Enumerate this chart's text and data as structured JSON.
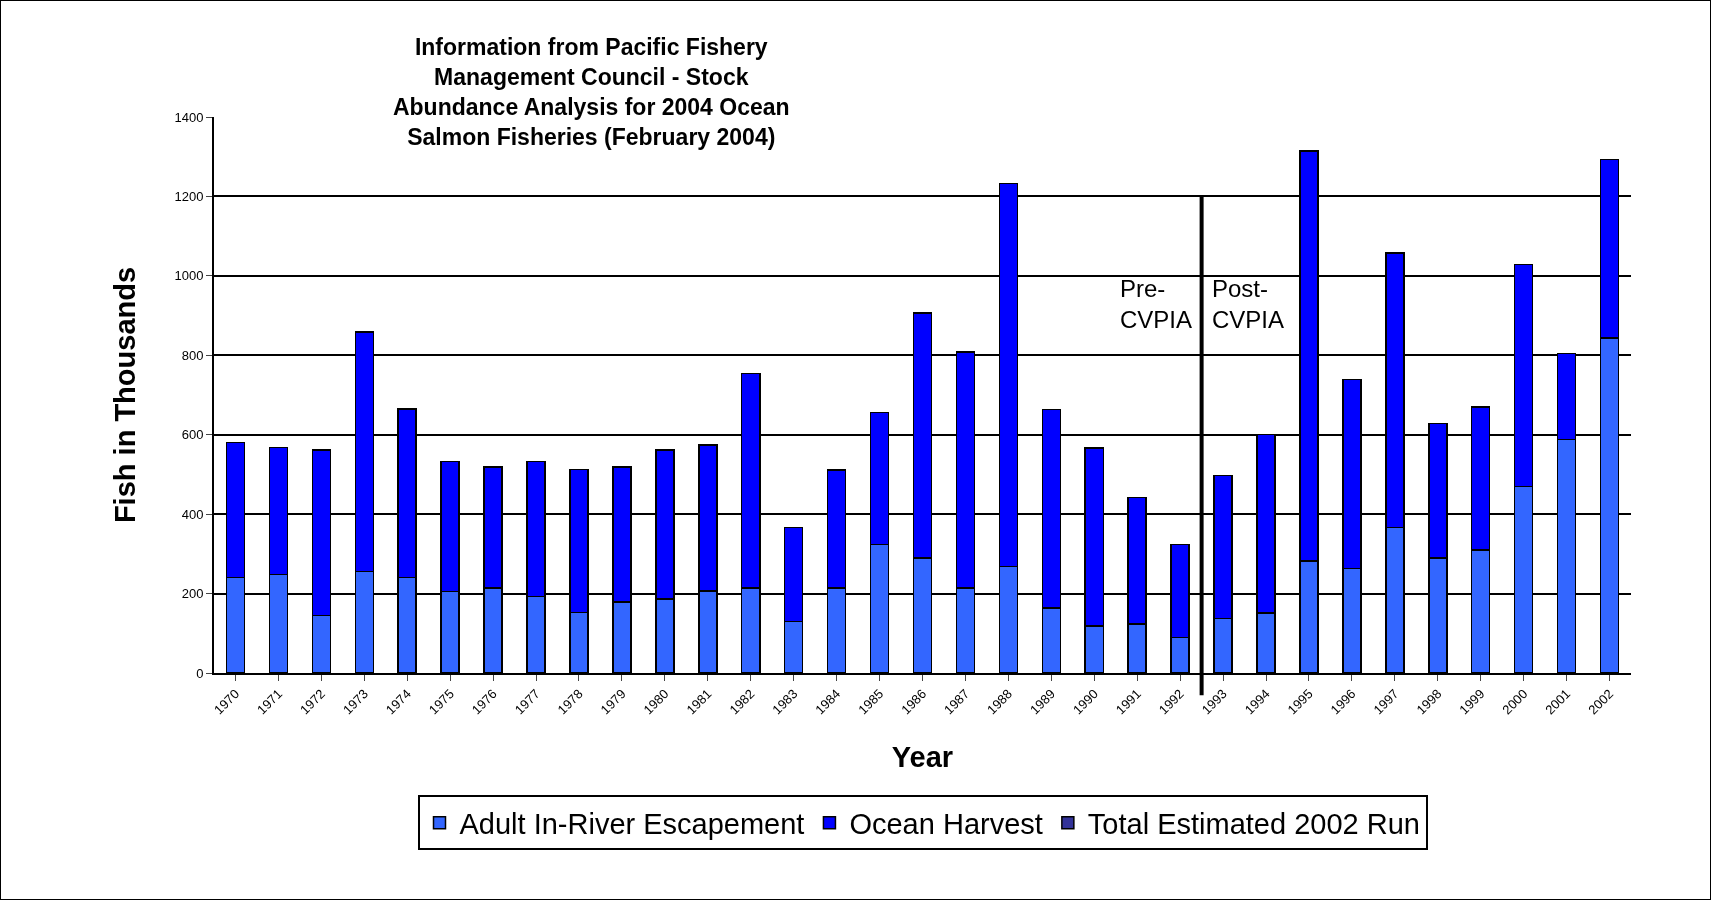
{
  "chart_data": {
    "type": "bar",
    "stacked": true,
    "title": "Information from Pacific Fishery\nManagement Council - Stock\nAbundance Analysis for 2004 Ocean\nSalmon Fisheries (February 2004)",
    "xlabel": "Year",
    "ylabel": "Fish in Thousands",
    "x": [
      1970,
      1971,
      1972,
      1973,
      1974,
      1975,
      1976,
      1977,
      1978,
      1979,
      1980,
      1981,
      1982,
      1983,
      1984,
      1985,
      1986,
      1987,
      1988,
      1989,
      1990,
      1991,
      1992,
      1993,
      1994,
      1995,
      1996,
      1997,
      1998,
      1999,
      2000,
      2001,
      2002
    ],
    "series": [
      {
        "name": "Adult In-River Escapement",
        "color": "#3366ff",
        "values": [
          241,
          248,
          145,
          255,
          241,
          205,
          214,
          193,
          152,
          179,
          186,
          207,
          214,
          130,
          214,
          323,
          289,
          214,
          268,
          164,
          118,
          124,
          89,
          137,
          151,
          282,
          263,
          366,
          289,
          310,
          469,
          588,
          843
        ]
      },
      {
        "name": "Ocean Harvest",
        "color": "#0000ff",
        "values": [
          340,
          320,
          416,
          604,
          424,
          328,
          305,
          340,
          360,
          340,
          375,
          367,
          540,
          236,
          297,
          333,
          617,
          594,
          964,
          500,
          449,
          318,
          235,
          360,
          449,
          1033,
          476,
          691,
          339,
          360,
          560,
          217,
          450
        ]
      },
      {
        "name": "Total Estimated 2002 Run",
        "color": "#333399",
        "values": [
          null,
          null,
          null,
          null,
          null,
          null,
          null,
          null,
          null,
          null,
          null,
          null,
          null,
          null,
          null,
          null,
          null,
          null,
          null,
          null,
          null,
          null,
          null,
          null,
          null,
          null,
          null,
          null,
          null,
          null,
          null,
          null,
          null
        ]
      }
    ],
    "xlim": [
      1969.5,
      2002.5
    ],
    "xticks": [
      {
        "value": 1970,
        "label": "1970"
      },
      {
        "value": 1971,
        "label": "1971"
      },
      {
        "value": 1972,
        "label": "1972"
      },
      {
        "value": 1973,
        "label": "1973"
      },
      {
        "value": 1974,
        "label": "1974"
      },
      {
        "value": 1975,
        "label": "1975"
      },
      {
        "value": 1976,
        "label": "1976"
      },
      {
        "value": 1977,
        "label": "1977"
      },
      {
        "value": 1978,
        "label": "1978"
      },
      {
        "value": 1979,
        "label": "1979"
      },
      {
        "value": 1980,
        "label": "1980"
      },
      {
        "value": 1981,
        "label": "1981"
      },
      {
        "value": 1982,
        "label": "1982"
      },
      {
        "value": 1983,
        "label": "1983"
      },
      {
        "value": 1984,
        "label": "1984"
      },
      {
        "value": 1985,
        "label": "1985"
      },
      {
        "value": 1986,
        "label": "1986"
      },
      {
        "value": 1987,
        "label": "1987"
      },
      {
        "value": 1988,
        "label": "1988"
      },
      {
        "value": 1989,
        "label": "1989"
      },
      {
        "value": 1990,
        "label": "1990"
      },
      {
        "value": 1991,
        "label": "1991"
      },
      {
        "value": 1992,
        "label": "1992"
      },
      {
        "value": 1993,
        "label": "1993"
      },
      {
        "value": 1994,
        "label": "1994"
      },
      {
        "value": 1995,
        "label": "1995"
      },
      {
        "value": 1996,
        "label": "1996"
      },
      {
        "value": 1997,
        "label": "1997"
      },
      {
        "value": 1998,
        "label": "1998"
      },
      {
        "value": 1999,
        "label": "1999"
      },
      {
        "value": 2000,
        "label": "2000"
      },
      {
        "value": 2001,
        "label": "2001"
      },
      {
        "value": 2002,
        "label": "2002"
      }
    ],
    "ylim": [
      0,
      1400
    ],
    "yticks": [
      0,
      200,
      400,
      600,
      800,
      1000,
      1200,
      1400
    ],
    "grid": "y",
    "legend": "bottom",
    "ref_lines": [
      {
        "axis": "x",
        "value": 1992.5,
        "color": "#000000"
      }
    ],
    "annotations": [
      "Pre-\nCVPIA",
      "Post-\nCVPIA"
    ]
  }
}
